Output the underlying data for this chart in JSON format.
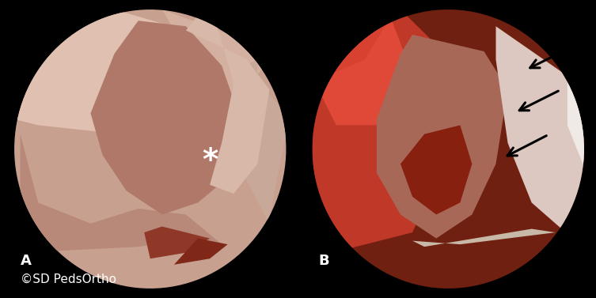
{
  "background_color": "#000000",
  "label_A": "A",
  "label_B": "B",
  "copyright_text": "©SD PedsOrtho",
  "asterisk": "*",
  "label_color": "#ffffff",
  "label_fontsize": 13,
  "copyright_fontsize": 11,
  "asterisk_fontsize": 28,
  "arrow_color": "#000000",
  "figsize": [
    7.53,
    3.77
  ],
  "dpi": 100
}
